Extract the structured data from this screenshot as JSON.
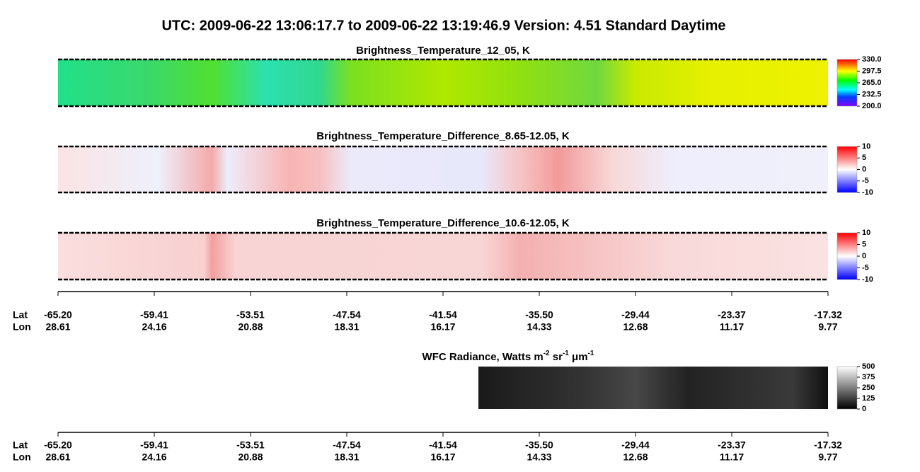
{
  "title": "UTC:  2009-06-22   13:06:17.7  to  2009-06-22   13:19:46.9    Version: 4.51  Standard Daytime",
  "panels": [
    {
      "title": "Brightness_Temperature_12_05, K",
      "colorbar": {
        "lim": [
          200,
          330
        ],
        "ticks": [
          {
            "value": 330,
            "label": "330.0"
          },
          {
            "value": 297.5,
            "label": "297.5"
          },
          {
            "value": 265,
            "label": "265.0"
          },
          {
            "value": 232.5,
            "label": "232.5"
          },
          {
            "value": 200,
            "label": "200.0"
          }
        ]
      }
    },
    {
      "title": "Brightness_Temperature_Difference_8.65-12.05, K",
      "colorbar": {
        "lim": [
          -10,
          10
        ],
        "ticks": [
          10,
          5,
          0,
          -5,
          -10
        ]
      }
    },
    {
      "title": "Brightness_Temperature_Difference_10.6-12.05, K",
      "colorbar": {
        "lim": [
          -10,
          10
        ],
        "ticks": [
          10,
          5,
          0,
          -5,
          -10
        ]
      }
    },
    {
      "title_parts": [
        "WFC Radiance, Watts m",
        "-2",
        " sr",
        "-1",
        " μm",
        "-1"
      ],
      "colorbar": {
        "lim": [
          0,
          500
        ],
        "ticks": [
          500,
          375,
          250,
          125,
          0
        ]
      }
    }
  ],
  "axes": [
    {
      "lat_label": "Lat",
      "lon_label": "Lon",
      "lat": [
        "-65.20",
        "-59.41",
        "-53.51",
        "-47.54",
        "-41.54",
        "-35.50",
        "-29.44",
        "-23.37",
        "-17.32"
      ],
      "lon": [
        "28.61",
        "24.16",
        "20.88",
        "18.31",
        "16.17",
        "14.33",
        "12.68",
        "11.17",
        "9.77"
      ]
    },
    {
      "lat_label": "Lat",
      "lon_label": "Lon",
      "lat": [
        "-65.20",
        "-59.41",
        "-53.51",
        "-47.54",
        "-41.54",
        "-35.50",
        "-29.44",
        "-23.37",
        "-17.32"
      ],
      "lon": [
        "28.61",
        "24.16",
        "20.88",
        "18.31",
        "16.17",
        "14.33",
        "12.68",
        "11.17",
        "9.77"
      ]
    }
  ]
}
